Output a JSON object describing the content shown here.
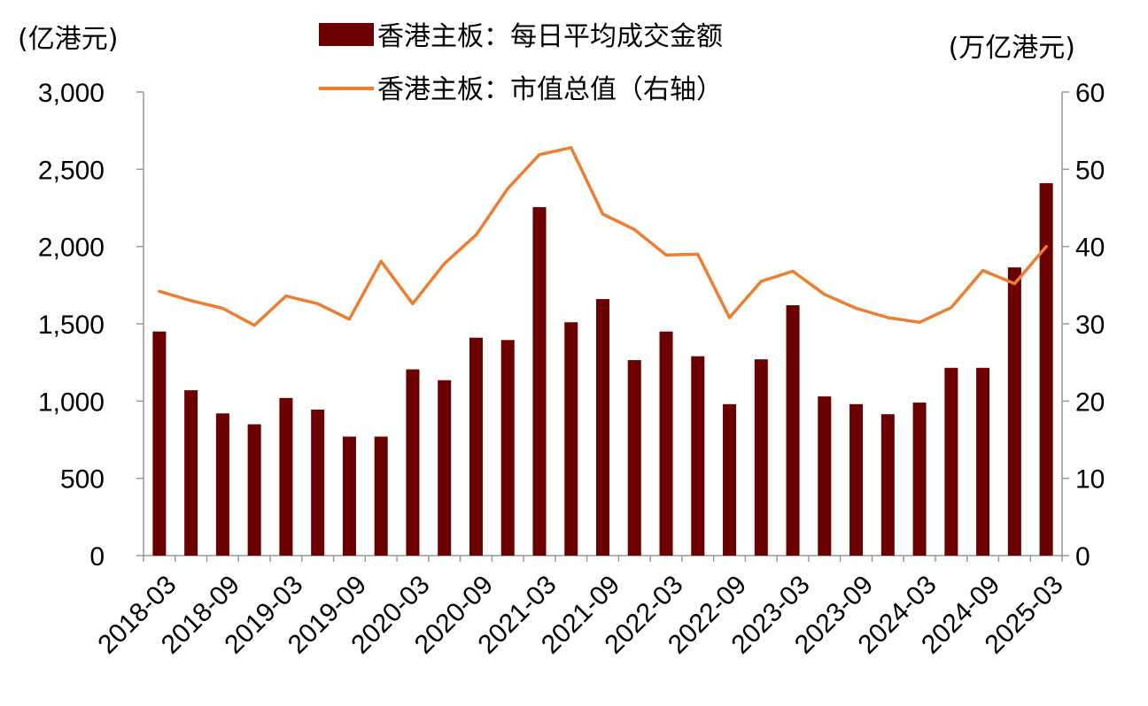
{
  "chart_data": {
    "type": "bar+line",
    "units": {
      "left": "(亿港元)",
      "right": "(万亿港元)"
    },
    "legend": {
      "placement": "top-center",
      "items": [
        {
          "label": "香港主板：每日平均成交金额",
          "color": "#6b0000",
          "kind": "bar"
        },
        {
          "label": "香港主板：市值总值（右轴）",
          "color": "#ed7d31",
          "kind": "line"
        }
      ]
    },
    "y_left": {
      "min": 0,
      "max": 3000,
      "ticks": [
        0,
        500,
        1000,
        1500,
        2000,
        2500,
        3000
      ],
      "tick_labels": [
        "0",
        "500",
        "1,000",
        "1,500",
        "2,000",
        "2,500",
        "3,000"
      ]
    },
    "y_right": {
      "min": 0,
      "max": 60,
      "ticks": [
        0,
        10,
        20,
        30,
        40,
        50,
        60
      ],
      "tick_labels": [
        "0",
        "10",
        "20",
        "30",
        "40",
        "50",
        "60"
      ]
    },
    "categories": [
      "2018-03",
      "2018-06",
      "2018-09",
      "2018-12",
      "2019-03",
      "2019-06",
      "2019-09",
      "2019-12",
      "2020-03",
      "2020-06",
      "2020-09",
      "2020-12",
      "2021-03",
      "2021-06",
      "2021-09",
      "2021-12",
      "2022-03",
      "2022-06",
      "2022-09",
      "2022-12",
      "2023-03",
      "2023-06",
      "2023-09",
      "2023-12",
      "2024-03",
      "2024-06",
      "2024-09",
      "2024-12",
      "2025-03"
    ],
    "x_tick_labels": [
      "2018-03",
      "2018-09",
      "2019-03",
      "2019-09",
      "2020-03",
      "2020-09",
      "2021-03",
      "2021-09",
      "2022-03",
      "2022-09",
      "2023-03",
      "2023-09",
      "2024-03",
      "2024-09",
      "2025-03"
    ],
    "series": [
      {
        "name": "香港主板：每日平均成交金额",
        "type": "bar",
        "axis": "left",
        "color": "#6b0000",
        "values": [
          1450,
          1070,
          920,
          850,
          1020,
          945,
          770,
          770,
          1205,
          1135,
          1410,
          1395,
          2255,
          1510,
          1660,
          1265,
          1450,
          1290,
          980,
          1270,
          1620,
          1030,
          980,
          915,
          990,
          1215,
          1215,
          1865,
          2410
        ]
      },
      {
        "name": "香港主板：市值总值（右轴）",
        "type": "line",
        "axis": "right",
        "color": "#ed7d31",
        "values": [
          34.2,
          33.0,
          32.0,
          29.8,
          33.6,
          32.6,
          30.6,
          38.1,
          32.6,
          37.8,
          41.5,
          47.5,
          51.9,
          52.8,
          44.2,
          42.2,
          38.9,
          39.0,
          30.8,
          35.5,
          36.8,
          33.8,
          32.0,
          30.8,
          30.2,
          32.1,
          36.9,
          35.2,
          40.0
        ]
      }
    ]
  }
}
